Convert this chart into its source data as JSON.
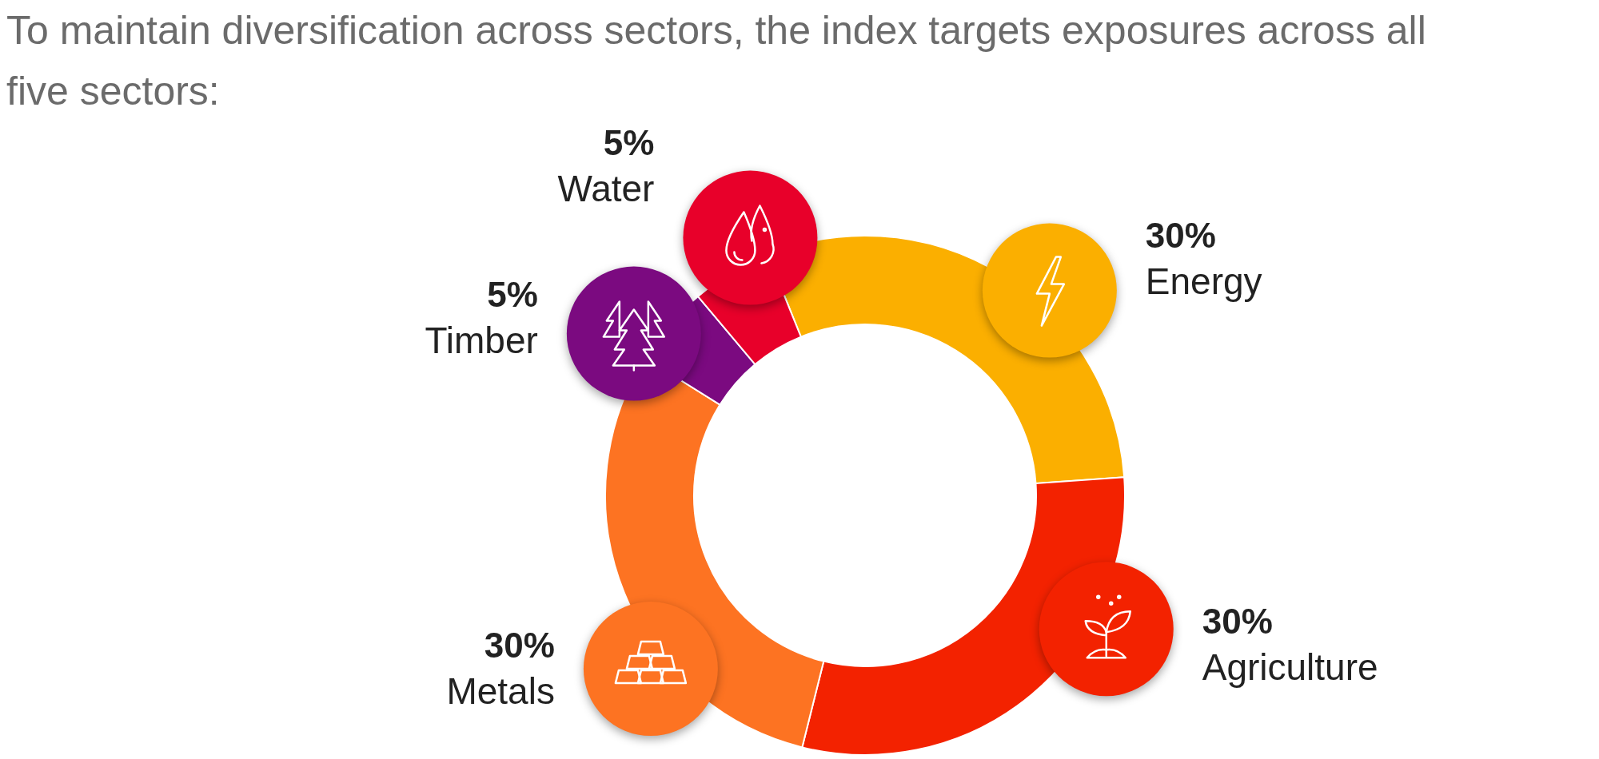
{
  "chart_data": {
    "type": "donut",
    "title": "To maintain diversification across sectors, the index targets exposures across all five sectors:",
    "categories": [
      "Energy",
      "Agriculture",
      "Metals",
      "Timber",
      "Water"
    ],
    "values": [
      30,
      30,
      30,
      5,
      5
    ],
    "value_labels": [
      "30%",
      "30%",
      "30%",
      "5%",
      "5%"
    ],
    "colors": [
      "#fbaf00",
      "#f32200",
      "#fd7322",
      "#7b0a80",
      "#e8002a"
    ]
  }
}
